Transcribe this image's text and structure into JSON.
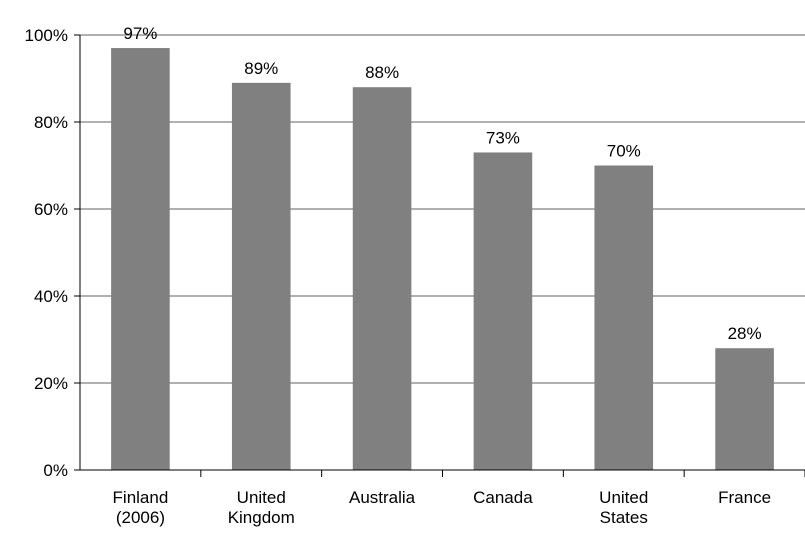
{
  "chart_data": {
    "type": "bar",
    "categories": [
      [
        "Finland",
        "(2006)"
      ],
      [
        "United",
        "Kingdom"
      ],
      [
        "Australia"
      ],
      [
        "Canada"
      ],
      [
        "United",
        "States"
      ],
      [
        "France"
      ]
    ],
    "values": [
      97,
      89,
      88,
      73,
      70,
      28
    ],
    "data_labels": [
      "97%",
      "89%",
      "88%",
      "73%",
      "70%",
      "28%"
    ],
    "ylim": [
      0,
      100
    ],
    "yticks": [
      0,
      20,
      40,
      60,
      80,
      100
    ],
    "ytick_labels": [
      "0%",
      "20%",
      "40%",
      "60%",
      "80%",
      "100%"
    ],
    "grid": true,
    "bar_color": "#808080",
    "grid_color": "#808080",
    "axis_color": "#000000"
  }
}
